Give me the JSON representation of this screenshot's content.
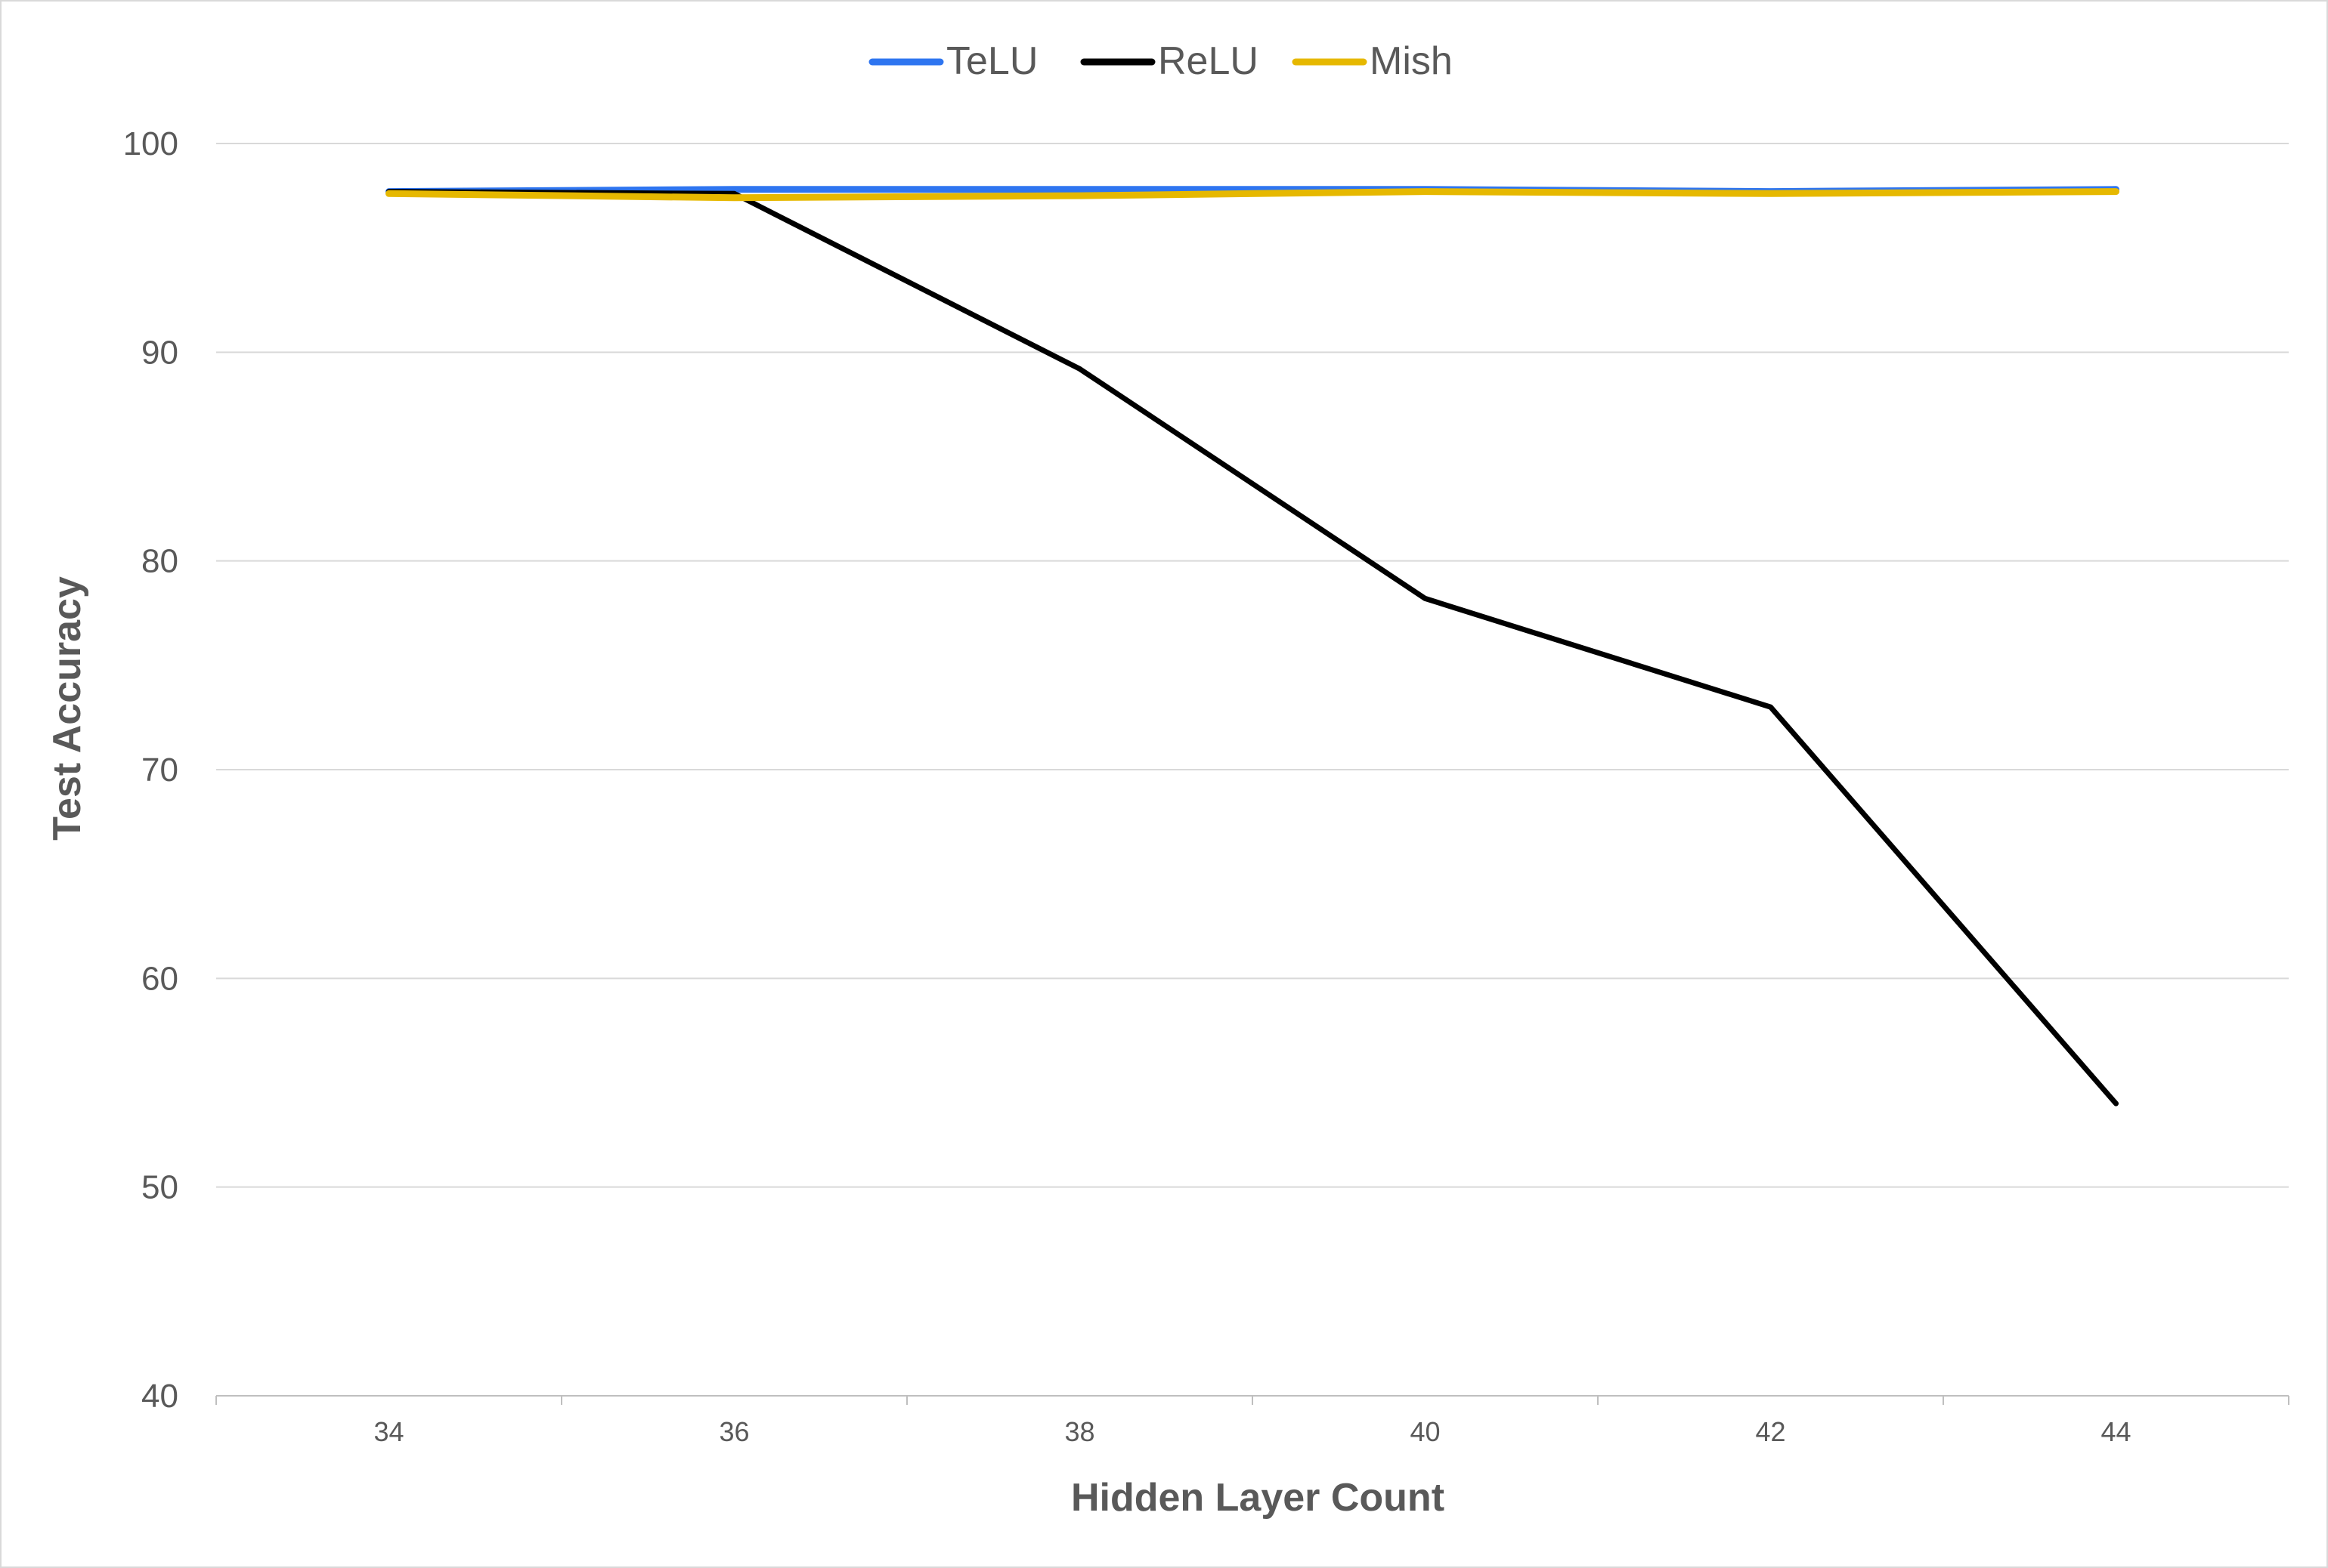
{
  "chart_data": {
    "type": "line",
    "title": "",
    "xlabel": "Hidden Layer Count",
    "ylabel": "Test Accuracy",
    "x": [
      34,
      36,
      38,
      40,
      42,
      44
    ],
    "x_tick_labels": [
      "34",
      "36",
      "38",
      "40",
      "42",
      "44"
    ],
    "ylim": [
      40,
      100
    ],
    "y_ticks": [
      40,
      50,
      60,
      70,
      80,
      90,
      100
    ],
    "y_tick_labels": [
      "40",
      "50",
      "60",
      "70",
      "80",
      "90",
      "100"
    ],
    "grid": true,
    "legend_position": "top-center",
    "series": [
      {
        "name": "TeLU",
        "color": "#2e75f0",
        "values": [
          97.7,
          97.8,
          97.8,
          97.8,
          97.7,
          97.8
        ]
      },
      {
        "name": "ReLU",
        "color": "#000000",
        "values": [
          97.7,
          97.6,
          89.2,
          78.2,
          73.0,
          54.0
        ]
      },
      {
        "name": "Mish",
        "color": "#e6b800",
        "values": [
          97.6,
          97.4,
          97.5,
          97.7,
          97.6,
          97.7
        ]
      }
    ]
  }
}
